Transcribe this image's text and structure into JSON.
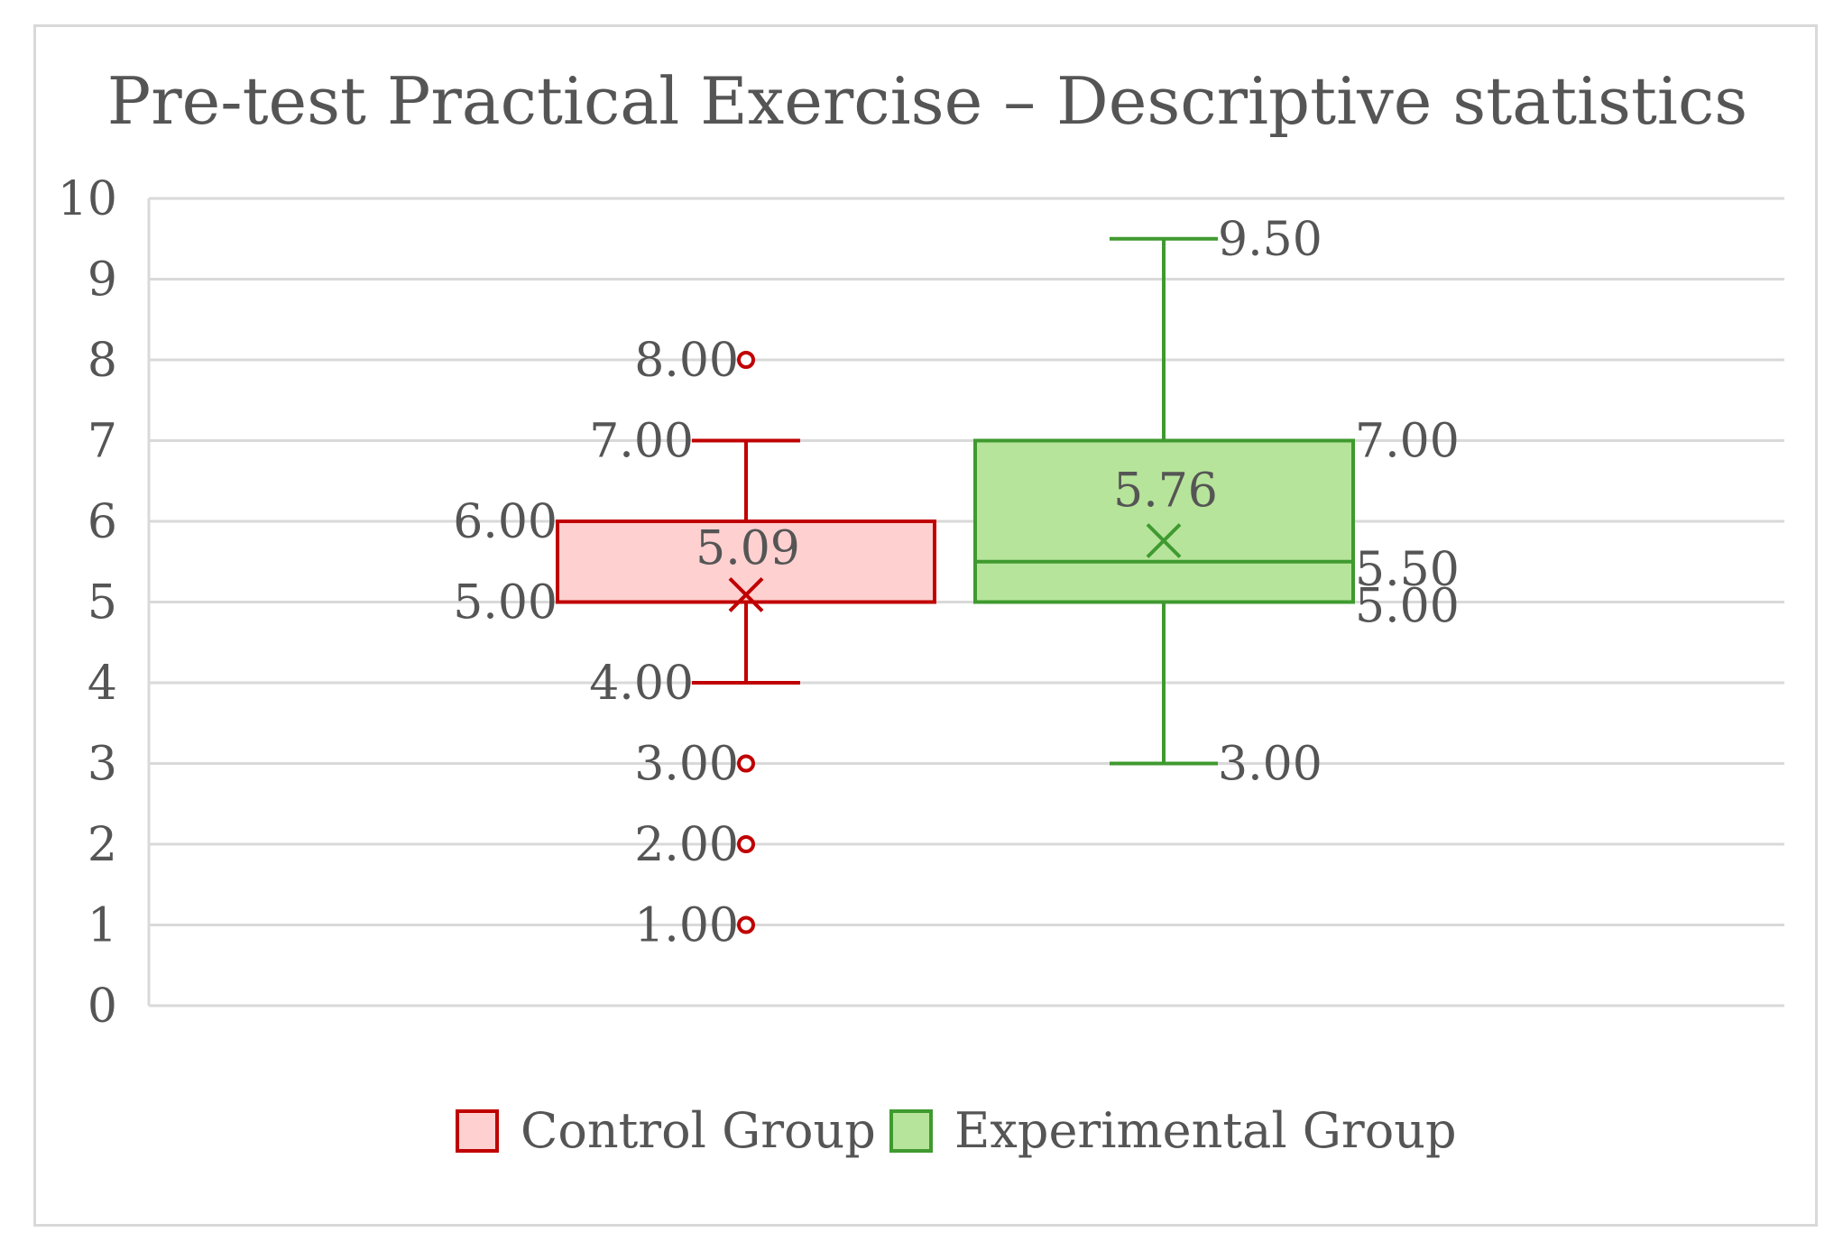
{
  "chart_data": {
    "type": "boxplot",
    "title": "Pre-test Practical Exercise – Descriptive statistics",
    "xlabel": "",
    "ylabel": "",
    "ylim": [
      0,
      10
    ],
    "yticks": [
      "0",
      "1",
      "2",
      "3",
      "4",
      "5",
      "6",
      "7",
      "8",
      "9",
      "10"
    ],
    "grid": true,
    "legend_position": "bottom",
    "series": [
      {
        "name": "Control Group",
        "fill": "#ffd0d0",
        "stroke": "#c00000",
        "whisker_low": 4.0,
        "q1": 5.0,
        "median": 5.0,
        "q3": 6.0,
        "whisker_high": 7.0,
        "mean": 5.09,
        "outliers": [
          8.0,
          3.0,
          2.0,
          1.0
        ],
        "labels": {
          "whisker_low": "4.00",
          "q1": "5.00",
          "q3": "6.00",
          "whisker_high": "7.00",
          "mean": "5.09",
          "outliers": [
            "8.00",
            "3.00",
            "2.00",
            "1.00"
          ]
        }
      },
      {
        "name": "Experimental Group",
        "fill": "#b6e49a",
        "stroke": "#3f9a2f",
        "whisker_low": 3.0,
        "q1": 5.0,
        "median": 5.5,
        "q3": 7.0,
        "whisker_high": 9.5,
        "mean": 5.76,
        "outliers": [],
        "labels": {
          "whisker_low": "3.00",
          "q1": "5.00",
          "median": "5.50",
          "q3": "7.00",
          "whisker_high": "9.50",
          "mean": "5.76"
        }
      }
    ]
  }
}
